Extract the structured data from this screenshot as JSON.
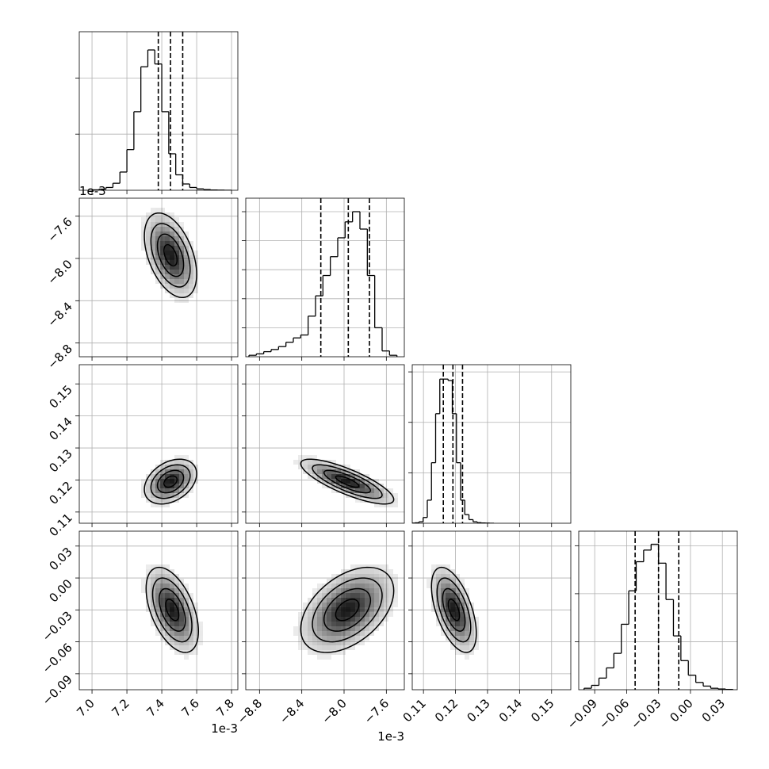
{
  "chart_data": {
    "type": "corner",
    "params": [
      {
        "lim": [
          6.927,
          7.836
        ],
        "ticks": [
          {
            "value": 7,
            "label": "7.0"
          },
          7.2,
          7.4,
          7.6,
          7.8
        ],
        "offset": "1e-3"
      },
      {
        "lim": [
          -8.93,
          -7.43
        ],
        "ticks": [
          {
            "value": -8.8,
            "label": "−8.8"
          },
          {
            "value": -8.4,
            "label": "−8.4"
          },
          {
            "value": -8,
            "label": "−8.0"
          },
          {
            "value": -7.6,
            "label": "−7.6"
          }
        ],
        "offset": "1e-3"
      },
      {
        "lim": [
          0.1065,
          0.156
        ],
        "ticks": [
          0.11,
          0.12,
          0.13,
          0.14,
          0.15
        ]
      },
      {
        "lim": [
          -0.105,
          0.044
        ],
        "ticks": [
          {
            "value": -0.09,
            "label": "−0.09"
          },
          {
            "value": -0.06,
            "label": "−0.06"
          },
          {
            "value": -0.03,
            "label": "−0.03"
          },
          {
            "value": 0,
            "label": "0.00"
          },
          0.03
        ]
      }
    ],
    "histograms": [
      {
        "bins": [
          7,
          7.04,
          7.08,
          7.12,
          7.16,
          7.2,
          7.24,
          7.28,
          7.32,
          7.36,
          7.4,
          7.44,
          7.48,
          7.52,
          7.56,
          7.6,
          7.64,
          7.68,
          7.72,
          7.76,
          7.8
        ],
        "counts": [
          3,
          8,
          20,
          50,
          130,
          290,
          560,
          880,
          1000,
          900,
          560,
          260,
          110,
          45,
          20,
          10,
          5,
          2,
          1,
          0
        ],
        "quantiles": [
          7.38,
          7.45,
          7.52
        ],
        "ylim": [
          0,
          1130
        ],
        "yticks": [
          400,
          800
        ]
      },
      {
        "bins": [
          -8.9,
          -8.83,
          -8.76,
          -8.69,
          -8.62,
          -8.55,
          -8.48,
          -8.41,
          -8.34,
          -8.27,
          -8.2,
          -8.13,
          -8.06,
          -7.99,
          -7.92,
          -7.85,
          -7.78,
          -7.71,
          -7.64,
          -7.57,
          -7.5
        ],
        "counts": [
          10,
          20,
          35,
          50,
          70,
          100,
          130,
          150,
          280,
          420,
          560,
          690,
          820,
          930,
          1000,
          880,
          560,
          200,
          40,
          10
        ],
        "quantiles": [
          -8.22,
          -7.96,
          -7.76
        ],
        "ylim": [
          0,
          1093
        ],
        "yticks": [
          200,
          400,
          600,
          800,
          1000
        ]
      },
      {
        "bins": [
          0.106,
          0.1073,
          0.1086,
          0.1099,
          0.1112,
          0.1125,
          0.1138,
          0.1151,
          0.1164,
          0.1177,
          0.119,
          0.1203,
          0.1216,
          0.1229,
          0.1242,
          0.1255,
          0.1268,
          0.1281,
          0.1294,
          0.1307,
          0.132
        ],
        "counts": [
          1,
          3,
          10,
          40,
          160,
          420,
          760,
          1000,
          1000,
          990,
          760,
          420,
          160,
          60,
          25,
          10,
          4,
          2,
          1,
          0
        ],
        "quantiles": [
          0.1162,
          0.1192,
          0.1222
        ],
        "ylim": [
          0,
          1100
        ],
        "yticks": [
          350,
          700,
          1050
        ]
      },
      {
        "bins": [
          -0.1,
          -0.093,
          -0.086,
          -0.079,
          -0.072,
          -0.065,
          -0.058,
          -0.051,
          -0.044,
          -0.037,
          -0.03,
          -0.023,
          -0.016,
          -0.009,
          -0.002,
          0.005,
          0.012,
          0.019,
          0.026,
          0.033,
          0.04
        ],
        "counts": [
          10,
          30,
          80,
          150,
          250,
          450,
          680,
          880,
          960,
          1000,
          870,
          620,
          370,
          200,
          100,
          50,
          25,
          10,
          5,
          2
        ],
        "quantiles": [
          -0.052,
          -0.03,
          -0.011
        ],
        "ylim": [
          0,
          1090
        ],
        "yticks": [
          330,
          660,
          990
        ]
      }
    ],
    "pairs": [
      {
        "row": 1,
        "col": 0,
        "center": [
          7.45,
          -7.97
        ],
        "sigma": [
          0.075,
          0.2
        ],
        "rho": -0.45
      },
      {
        "row": 2,
        "col": 0,
        "center": [
          7.45,
          0.1195
        ],
        "sigma": [
          0.075,
          0.0035
        ],
        "rho": 0.35
      },
      {
        "row": 2,
        "col": 1,
        "center": [
          -7.97,
          0.1195
        ],
        "sigma": [
          0.22,
          0.0035
        ],
        "rho": -0.8
      },
      {
        "row": 3,
        "col": 0,
        "center": [
          7.46,
          -0.03
        ],
        "sigma": [
          0.075,
          0.02
        ],
        "rho": -0.5
      },
      {
        "row": 3,
        "col": 1,
        "center": [
          -7.97,
          -0.03
        ],
        "sigma": [
          0.22,
          0.02
        ],
        "rho": 0.45
      },
      {
        "row": 3,
        "col": 2,
        "center": [
          0.1195,
          -0.03
        ],
        "sigma": [
          0.0035,
          0.02
        ],
        "rho": -0.55
      }
    ],
    "contour_levels": [
      0.5,
      1,
      1.5,
      2
    ],
    "grid": true,
    "color": "#000000"
  }
}
